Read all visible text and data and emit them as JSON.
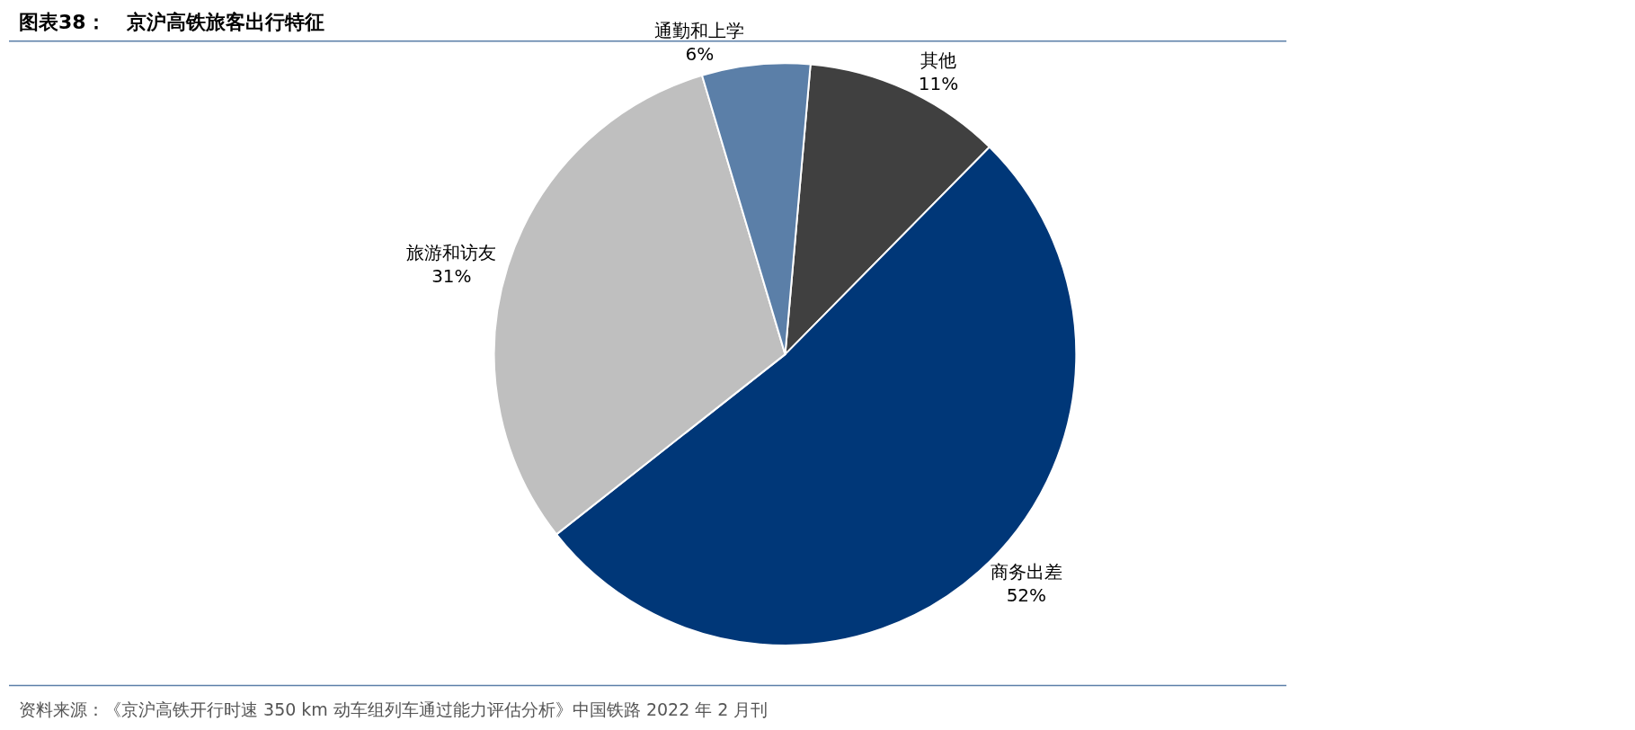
{
  "chart_data": {
    "type": "pie",
    "title": "图表38：   京沪高铁旅客出行特征",
    "categories": [
      "其他",
      "商务出差",
      "旅游和访友",
      "通勤和上学"
    ],
    "values": [
      11,
      52,
      31,
      6
    ],
    "colors": [
      "#404040",
      "#003778",
      "#bfbfbf",
      "#5b7fa8"
    ],
    "value_labels": [
      "11%",
      "52%",
      "31%",
      "6%"
    ],
    "legend": false,
    "annotations": [
      "资料来源：《京沪高铁开行时速 350 km 动车组列车通过能力评估分析》中国铁路 2022 年 2 月刊"
    ]
  }
}
